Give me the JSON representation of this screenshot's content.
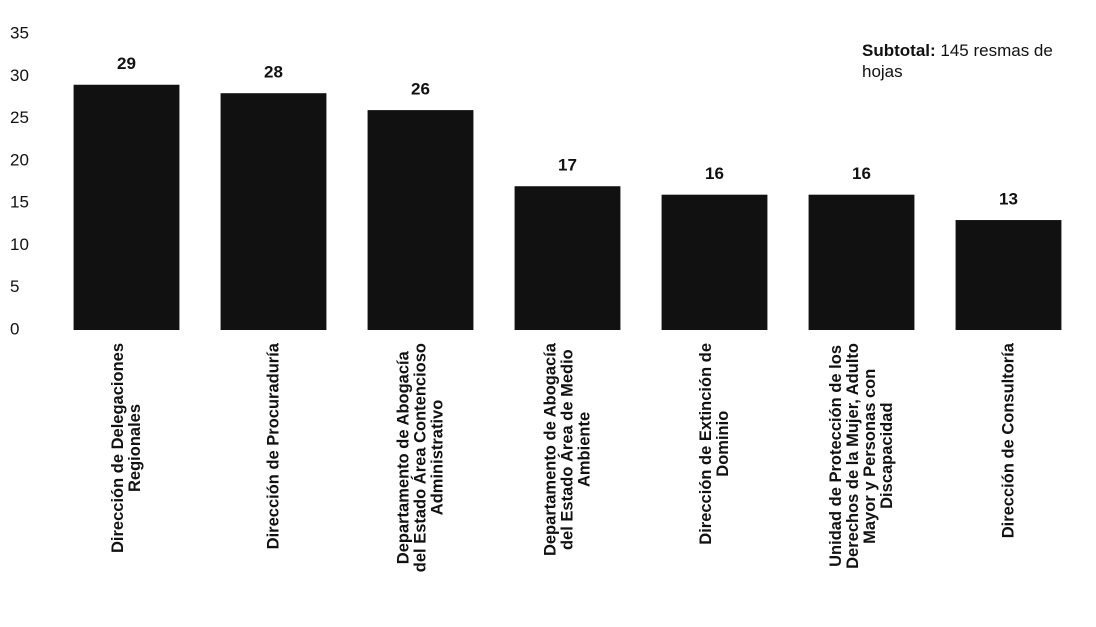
{
  "chart_data": {
    "type": "bar",
    "categories": [
      "Dirección de Delegaciones\nRegionales",
      "Dirección de Procuraduría",
      "Departamento de Abogacía\ndel Estado Área Contencioso\nAdministrativo",
      "Departamento de Abogacía\ndel Estado Área de Medio\nAmbiente",
      "Dirección de Extinción de\nDominio",
      "Unidad de Protección de los\nDerechos de la Mujer, Adulto\nMayor y Personas con\nDiscapacidad",
      "Dirección de Consultoría"
    ],
    "values": [
      29,
      28,
      26,
      17,
      16,
      16,
      13
    ],
    "color": "#111111",
    "ylim": [
      0,
      35
    ],
    "yticks": [
      0,
      5,
      10,
      15,
      20,
      25,
      30,
      35
    ],
    "grid": false,
    "annotation": {
      "label": "Subtotal:",
      "text": "145 resmas de hojas"
    }
  }
}
